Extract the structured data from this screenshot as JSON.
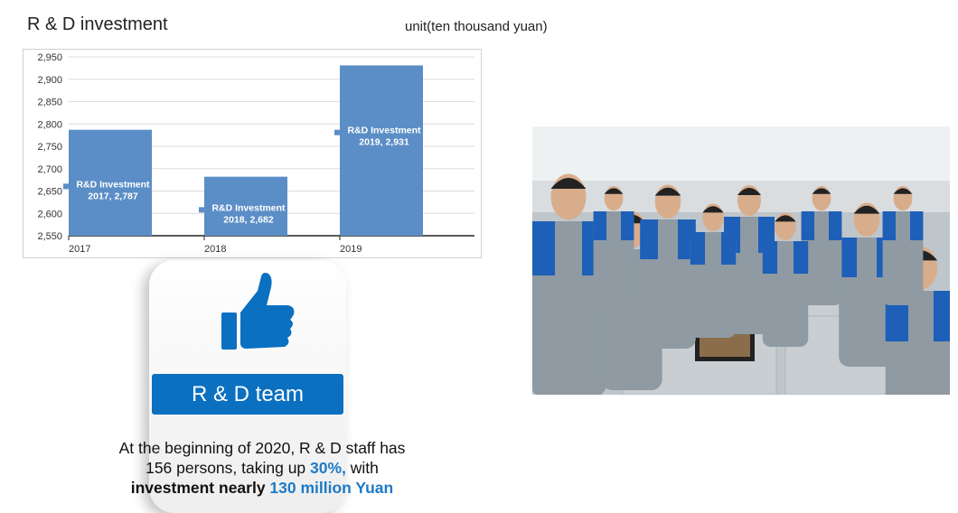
{
  "header": {
    "title": "R & D investment",
    "unit": "unit(ten thousand yuan)"
  },
  "chart_data": {
    "type": "bar",
    "categories": [
      "2017",
      "2018",
      "2019"
    ],
    "series": [
      {
        "name": "R&D Investment",
        "values": [
          2787,
          2682,
          2931
        ]
      }
    ],
    "data_labels": [
      "R&D Investment 2017, 2,787",
      "R&D Investment 2018, 2,682",
      "R&D Investment 2019, 2,931"
    ],
    "ylim": [
      2550,
      2950
    ],
    "yticks": [
      2550,
      2600,
      2650,
      2700,
      2750,
      2800,
      2850,
      2900,
      2950
    ],
    "ytick_labels": [
      "2,550",
      "2,600",
      "2,650",
      "2,700",
      "2,750",
      "2,800",
      "2,850",
      "2,900",
      "2,950"
    ],
    "grid": true,
    "bar_color": "#5b8ec6"
  },
  "card": {
    "icon": "thumbs-up-icon",
    "label": "R & D team",
    "accent": "#0b70c0"
  },
  "description": {
    "line1": "At the beginning of 2020, R & D staff has",
    "line2_a": "156 persons, taking up ",
    "line2_b": "30%,",
    "line2_c": " with",
    "line3_a": "investment nearly ",
    "line3_b": "130 million Yuan"
  },
  "photo": {
    "subject": "R&D staff team in office"
  }
}
